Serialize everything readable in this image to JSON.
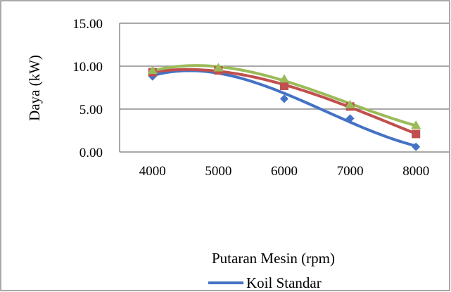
{
  "chart_data": {
    "type": "scatter",
    "title": "",
    "xlabel": "Putaran Mesin (rpm)",
    "ylabel": "Daya (kW)",
    "xlim": [
      3500,
      8500
    ],
    "ylim": [
      0,
      15
    ],
    "x_ticks": [
      "4000",
      "5000",
      "6000",
      "7000",
      "8000"
    ],
    "y_ticks": [
      "0.00",
      "5.00",
      "10.00",
      "15.00"
    ],
    "grid": "horizontal",
    "legend_placement": "bottom",
    "trendlines": "polynomial",
    "series": [
      {
        "name": "Koil Standar",
        "marker": "diamond",
        "color": "#4472C4",
        "x": [
          4000,
          5000,
          6000,
          7000,
          8000
        ],
        "y": [
          8.8,
          9.6,
          6.2,
          3.9,
          0.6
        ]
      },
      {
        "marker": "square",
        "color": "#C0504D",
        "x": [
          4000,
          5000,
          6000,
          7000,
          8000
        ],
        "y": [
          9.3,
          9.5,
          7.7,
          5.3,
          2.1
        ]
      },
      {
        "marker": "triangle",
        "color": "#9BBB59",
        "x": [
          4000,
          5000,
          6000,
          7000,
          8000
        ],
        "y": [
          9.5,
          9.8,
          8.5,
          5.5,
          3.1
        ]
      }
    ]
  }
}
